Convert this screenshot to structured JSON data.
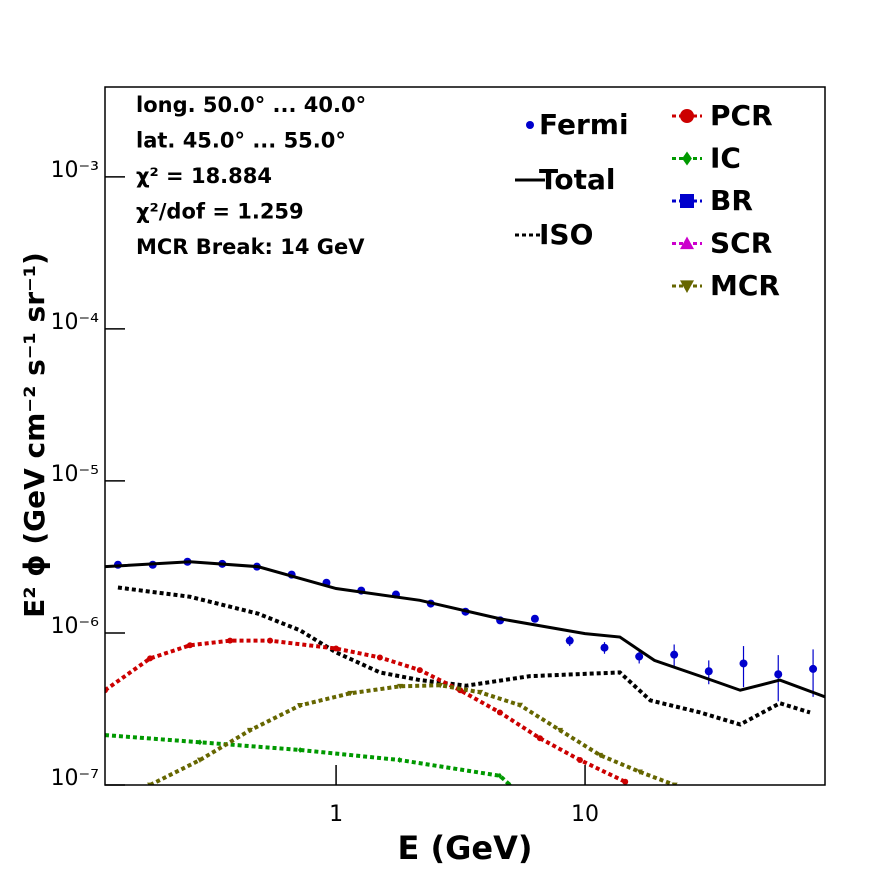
{
  "chart_data": {
    "type": "line",
    "xlabel": "E (GeV)",
    "ylabel": "E² ϕ (GeV cm⁻² s⁻¹ sr⁻¹)",
    "xscale": "log",
    "yscale": "log",
    "grid": false,
    "xlim": [
      0.118,
      92
    ],
    "ylim": [
      1e-07,
      0.0039
    ],
    "xticks": [
      1,
      10
    ],
    "yticks": [
      {
        "value": 1e-07,
        "label": "10⁻⁷"
      },
      {
        "value": 1e-06,
        "label": "10⁻⁶"
      },
      {
        "value": 1e-05,
        "label": "10⁻⁵"
      },
      {
        "value": 0.0001,
        "label": "10⁻⁴"
      },
      {
        "value": 0.001,
        "label": "10⁻³"
      }
    ],
    "annotations": [
      "long. 50.0° ... 40.0°",
      "lat. 45.0° ... 55.0°",
      "χ² = 18.884",
      "χ²/dof = 1.259",
      "MCR Break: 14 GeV"
    ],
    "series": [
      {
        "name": "Fermi",
        "color": "#0000cc",
        "marker": "circle",
        "style": "none",
        "x": [
          0.133,
          0.1835,
          0.253,
          0.349,
          0.481,
          0.663,
          0.915,
          1.262,
          1.74,
          2.4,
          3.31,
          4.56,
          6.29,
          8.68,
          11.97,
          16.5,
          22.8,
          31.4,
          43.3,
          59.7,
          82.4
        ],
        "values": [
          2.81e-06,
          2.81e-06,
          2.94e-06,
          2.85e-06,
          2.73e-06,
          2.42e-06,
          2.14e-06,
          1.9e-06,
          1.79e-06,
          1.56e-06,
          1.38e-06,
          1.21e-06,
          1.24e-06,
          8.9e-07,
          8e-07,
          7e-07,
          7.2e-07,
          5.6e-07,
          6.3e-07,
          5.35e-07,
          5.8e-07
        ],
        "errors": [
          5e-08,
          5e-08,
          5e-08,
          5e-08,
          4e-08,
          4e-08,
          4e-08,
          4e-08,
          4e-08,
          4e-08,
          4e-08,
          4e-08,
          6e-08,
          7e-08,
          7e-08,
          7e-08,
          1.2e-07,
          1e-07,
          1.9e-07,
          1.8e-07,
          2e-07
        ]
      },
      {
        "name": "Total",
        "color": "#000000",
        "marker": "none",
        "style": "solid",
        "x": [
          0.118,
          0.259,
          0.486,
          1,
          2.17,
          4.55,
          10,
          13.8,
          19,
          29,
          42,
          60.6,
          92
        ],
        "values": [
          2.73e-06,
          2.94e-06,
          2.73e-06,
          1.96e-06,
          1.64e-06,
          1.24e-06,
          9.9e-07,
          9.4e-07,
          6.6e-07,
          5.2e-07,
          4.2e-07,
          4.9e-07,
          3.8e-07
        ]
      },
      {
        "name": "ISO",
        "color": "#000000",
        "marker": "none",
        "style": "dotted",
        "x": [
          0.133,
          0.259,
          0.486,
          0.717,
          1,
          1.5,
          2.17,
          3.33,
          6.01,
          13.8,
          18.3,
          29,
          42,
          60.6,
          80.1
        ],
        "values": [
          1.99e-06,
          1.73e-06,
          1.34e-06,
          1.04e-06,
          7.45e-07,
          5.5e-07,
          4.9e-07,
          4.5e-07,
          5.2e-07,
          5.5e-07,
          3.6e-07,
          3e-07,
          2.5e-07,
          3.45e-07,
          3e-07
        ]
      },
      {
        "name": "PCR",
        "color": "#cc0000",
        "marker": "circle",
        "style": "dotted",
        "x": [
          0.118,
          0.179,
          0.259,
          0.375,
          0.543,
          1,
          1.5,
          2.17,
          3.15,
          4.55,
          6.59,
          9.54,
          14.5
        ],
        "values": [
          4.2e-07,
          6.8e-07,
          8.3e-07,
          8.9e-07,
          8.9e-07,
          7.9e-07,
          6.9e-07,
          5.7e-07,
          4.2e-07,
          3e-07,
          2.03e-07,
          1.46e-07,
          1.05e-07
        ]
      },
      {
        "name": "IC",
        "color": "#009900",
        "marker": "diamond",
        "style": "dotted",
        "x": [
          0.118,
          0.284,
          0.717,
          1.8,
          4.55,
          4.99
        ],
        "values": [
          2.13e-07,
          1.91e-07,
          1.7e-07,
          1.46e-07,
          1.15e-07,
          1e-07
        ]
      },
      {
        "name": "BR",
        "color": "#0000cc",
        "marker": "square",
        "style": "dotted",
        "x": [],
        "values": []
      },
      {
        "name": "SCR",
        "color": "#cc00cc",
        "marker": "triangle",
        "style": "dotted",
        "x": [],
        "values": []
      },
      {
        "name": "MCR",
        "color": "#666600",
        "marker": "triangle-down",
        "style": "dotted",
        "x": [
          0.179,
          0.284,
          0.451,
          0.717,
          1.14,
          1.81,
          2.62,
          3.79,
          5.48,
          7.94,
          11.5,
          16.6,
          22.9
        ],
        "values": [
          1e-07,
          1.46e-07,
          2.29e-07,
          3.34e-07,
          4.01e-07,
          4.46e-07,
          4.53e-07,
          4.07e-07,
          3.35e-07,
          2.29e-07,
          1.57e-07,
          1.22e-07,
          1e-07
        ]
      }
    ]
  }
}
